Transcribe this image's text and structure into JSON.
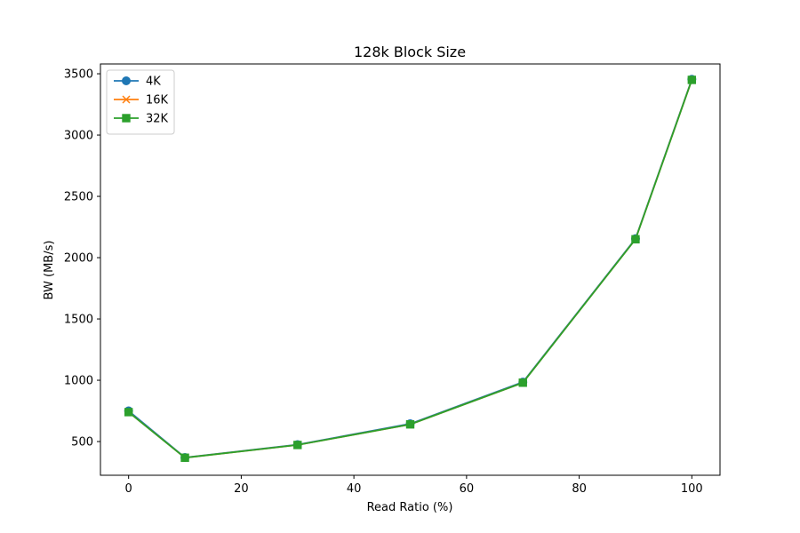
{
  "chart_data": {
    "type": "line",
    "title": "128k Block Size",
    "xlabel": "Read Ratio (%)",
    "ylabel": "BW (MB/s)",
    "x": [
      0,
      10,
      30,
      50,
      70,
      90,
      100
    ],
    "xlim": [
      -5,
      105
    ],
    "ylim": [
      225,
      3580
    ],
    "xticks": [
      0,
      20,
      40,
      60,
      80,
      100
    ],
    "yticks": [
      500,
      1000,
      1500,
      2000,
      2500,
      3000,
      3500
    ],
    "grid": false,
    "legend_position": "top-left",
    "series": [
      {
        "name": "4K",
        "color": "#1f77b4",
        "marker": "circle",
        "values": [
          750,
          370,
          475,
          645,
          985,
          2155,
          3455
        ]
      },
      {
        "name": "16K",
        "color": "#ff7f0e",
        "marker": "x",
        "values": [
          740,
          368,
          472,
          640,
          980,
          2150,
          3450
        ]
      },
      {
        "name": "32K",
        "color": "#2ca02c",
        "marker": "square",
        "values": [
          740,
          368,
          472,
          640,
          980,
          2150,
          3450
        ]
      }
    ]
  }
}
